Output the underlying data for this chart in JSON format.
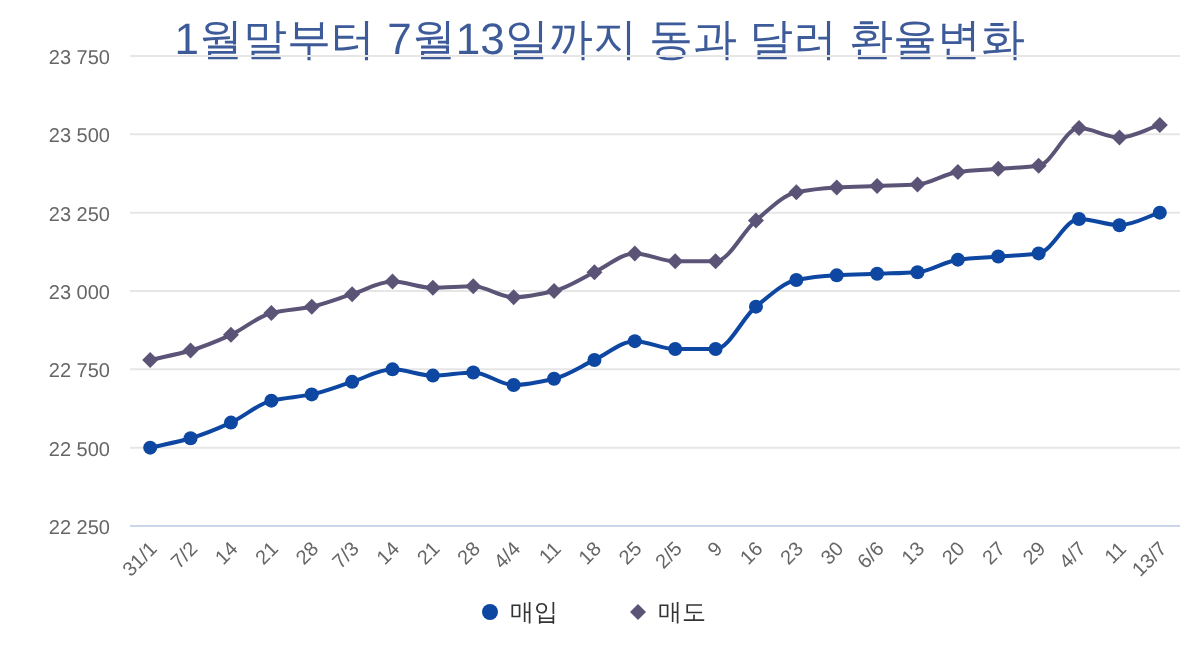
{
  "chart_data": {
    "type": "line",
    "title": "1월말부터 7월13일까지 동과 달러 환율변화",
    "categories": [
      "31/1",
      "7/2",
      "14",
      "21",
      "28",
      "7/3",
      "14",
      "21",
      "28",
      "4/4",
      "11",
      "18",
      "25",
      "2/5",
      "9",
      "16",
      "23",
      "30",
      "6/6",
      "13",
      "20",
      "27",
      "29",
      "4/7",
      "11",
      "13/7"
    ],
    "series": [
      {
        "name": "매입",
        "color": "#0d47a1",
        "marker": "circle",
        "values": [
          22500,
          22530,
          22580,
          22650,
          22670,
          22710,
          22750,
          22730,
          22740,
          22700,
          22720,
          22780,
          22840,
          22815,
          22815,
          22950,
          23035,
          23050,
          23055,
          23060,
          23100,
          23110,
          23120,
          23230,
          23210,
          23250
        ]
      },
      {
        "name": "매도",
        "color": "#5c5477",
        "marker": "diamond",
        "values": [
          22780,
          22810,
          22860,
          22930,
          22950,
          22990,
          23030,
          23010,
          23015,
          22980,
          23000,
          23060,
          23120,
          23095,
          23095,
          23225,
          23315,
          23330,
          23335,
          23340,
          23380,
          23390,
          23400,
          23520,
          23490,
          23530
        ]
      }
    ],
    "ylim": [
      22250,
      23750
    ],
    "yticks": [
      {
        "value": 22250,
        "label": "22 250"
      },
      {
        "value": 22500,
        "label": "22 500"
      },
      {
        "value": 22750,
        "label": "22 750"
      },
      {
        "value": 23000,
        "label": "23 000"
      },
      {
        "value": 23250,
        "label": "23 250"
      },
      {
        "value": 23500,
        "label": "23 500"
      },
      {
        "value": 23750,
        "label": "23 750"
      }
    ],
    "grid": "y",
    "legend": "bottom"
  }
}
